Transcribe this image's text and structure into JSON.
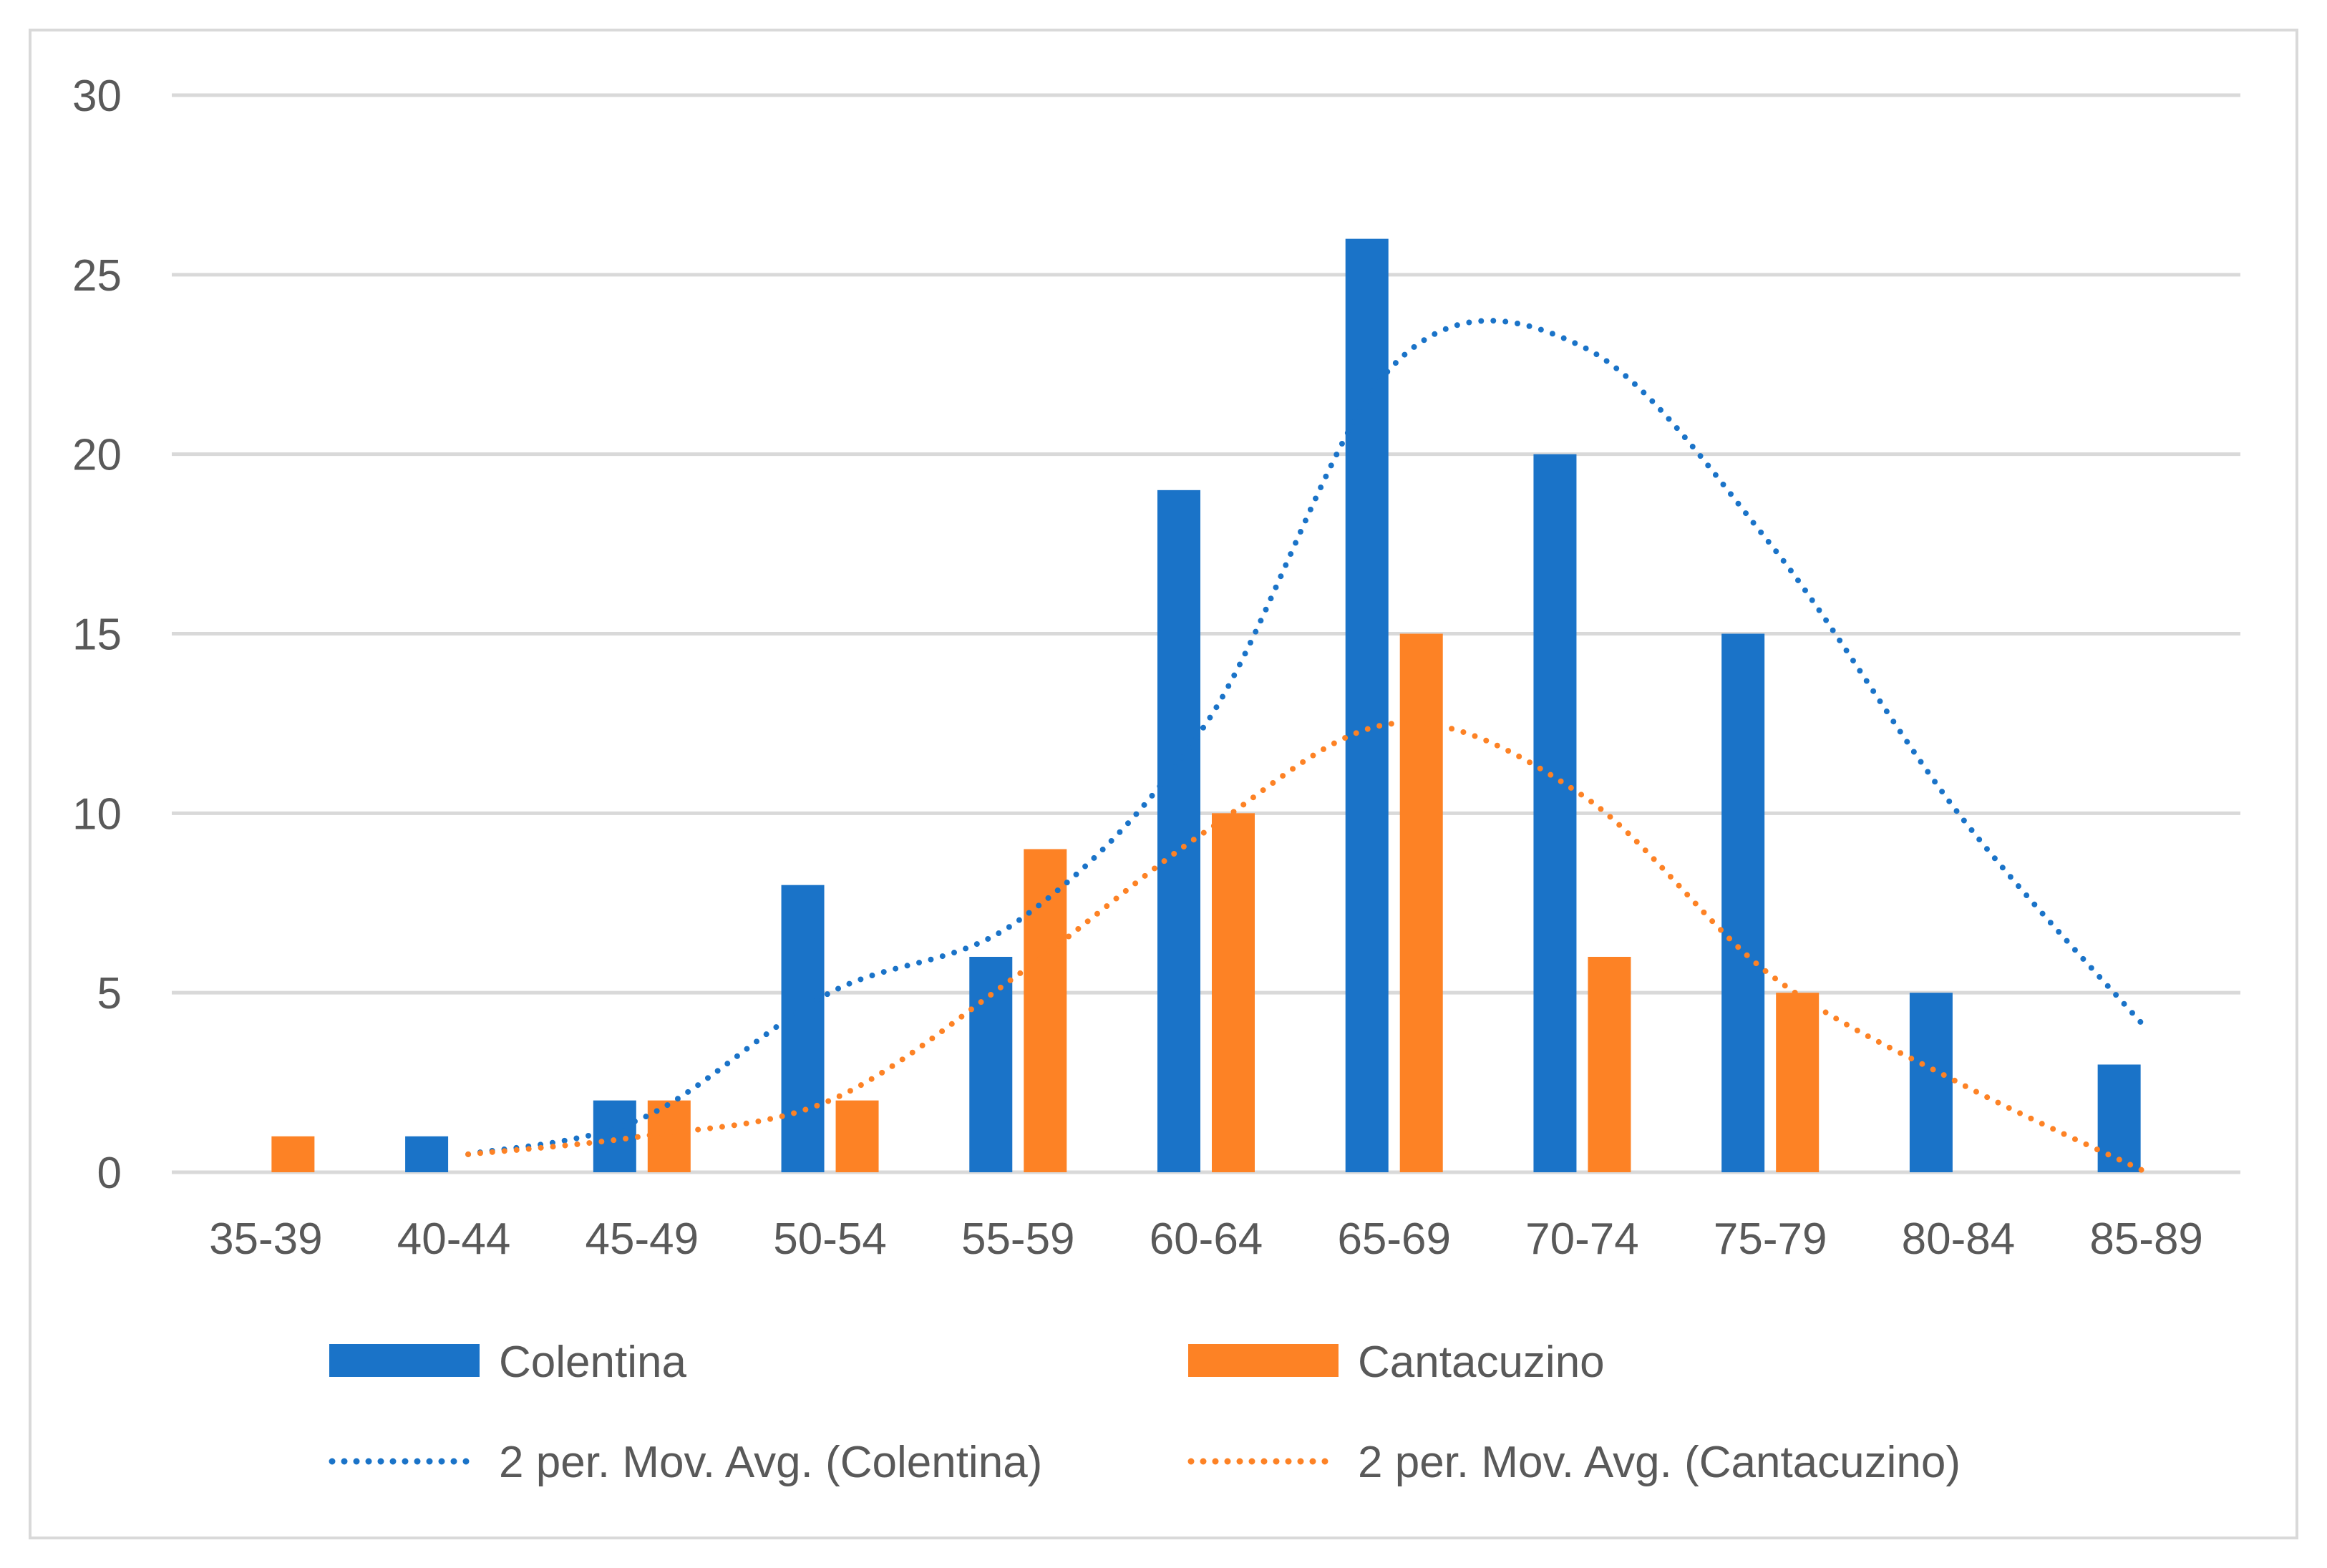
{
  "chart_data": {
    "type": "bar",
    "title": "",
    "xlabel": "",
    "ylabel": "",
    "ylim": [
      0,
      30
    ],
    "yticks": [
      0,
      5,
      10,
      15,
      20,
      25,
      30
    ],
    "grid": true,
    "legend_position": "bottom",
    "categories": [
      "35-39",
      "40-44",
      "45-49",
      "50-54",
      "55-59",
      "60-64",
      "65-69",
      "70-74",
      "75-79",
      "80-84",
      "85-89"
    ],
    "series": [
      {
        "name": "Colentina",
        "color": "#1a73c8",
        "values": [
          0,
          1,
          2,
          8,
          6,
          19,
          26,
          20,
          15,
          5,
          3
        ]
      },
      {
        "name": "Cantacuzino",
        "color": "#fd8225",
        "values": [
          1,
          0,
          2,
          2,
          9,
          10,
          15,
          6,
          5,
          0,
          0
        ]
      }
    ],
    "trendlines": [
      {
        "name": "2 per. Mov. Avg. (Colentina)",
        "color": "#1a73c8",
        "style": "dotted",
        "values": [
          null,
          0.5,
          1.5,
          5,
          7,
          12.5,
          22.5,
          23,
          17.5,
          10,
          4
        ]
      },
      {
        "name": "2 per. Mov. Avg. (Cantacuzino)",
        "color": "#fd8225",
        "style": "dotted",
        "values": [
          null,
          0.5,
          1,
          2,
          5.5,
          9.5,
          12.5,
          10.5,
          5.5,
          2.5,
          0
        ]
      }
    ]
  }
}
